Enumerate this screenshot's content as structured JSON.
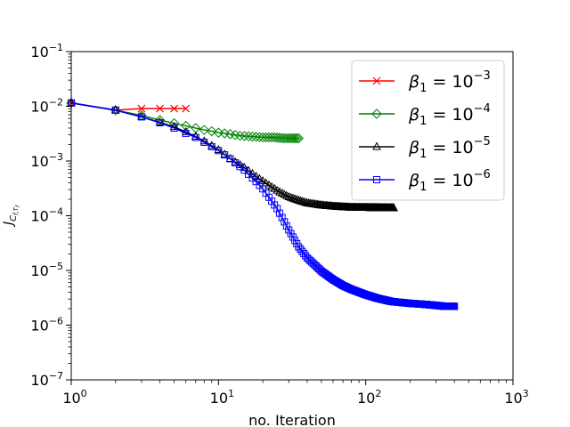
{
  "chart_data": {
    "type": "line",
    "xscale": "log",
    "yscale": "log",
    "xlim": [
      1,
      1000
    ],
    "ylim": [
      1e-07,
      0.1
    ],
    "xlabel": "no. Iteration",
    "ylabel": "J_{C_{f,T_f}}",
    "legend_location": "upper-right",
    "grid": false,
    "x_ticks": [
      {
        "value": 1,
        "base": "10",
        "exp": "0"
      },
      {
        "value": 10,
        "base": "10",
        "exp": "1"
      },
      {
        "value": 100,
        "base": "10",
        "exp": "2"
      },
      {
        "value": 1000,
        "base": "10",
        "exp": "3"
      }
    ],
    "y_ticks": [
      {
        "value": 1e-07,
        "base": "10",
        "exp": "−7"
      },
      {
        "value": 1e-06,
        "base": "10",
        "exp": "−6"
      },
      {
        "value": 1e-05,
        "base": "10",
        "exp": "−5"
      },
      {
        "value": 0.0001,
        "base": "10",
        "exp": "−4"
      },
      {
        "value": 0.001,
        "base": "10",
        "exp": "−3"
      },
      {
        "value": 0.01,
        "base": "10",
        "exp": "−2"
      },
      {
        "value": 0.1,
        "base": "10",
        "exp": "−1"
      }
    ],
    "series": [
      {
        "name": "β1 = 10^-3",
        "legend_prefix": "β",
        "legend_sub": "1",
        "legend_mid": " = 10",
        "legend_exp": "−3",
        "color": "#ff0000",
        "marker": "x",
        "x": [
          1,
          2,
          3,
          4,
          5,
          6
        ],
        "y": [
          0.0115,
          0.0085,
          0.0091,
          0.0091,
          0.0091,
          0.0091
        ]
      },
      {
        "name": "β1 = 10^-4",
        "legend_prefix": "β",
        "legend_sub": "1",
        "legend_mid": " = 10",
        "legend_exp": "−4",
        "color": "#008000",
        "marker": "diamond",
        "x": [
          1,
          2,
          3,
          4,
          5,
          6,
          7,
          8,
          9,
          10,
          12,
          14,
          17,
          20,
          24,
          28,
          32,
          35
        ],
        "y": [
          0.0115,
          0.0085,
          0.0068,
          0.0056,
          0.0049,
          0.0044,
          0.004,
          0.0037,
          0.0035,
          0.0033,
          0.0031,
          0.0029,
          0.0028,
          0.0027,
          0.0027,
          0.0026,
          0.0026,
          0.0026
        ]
      },
      {
        "name": "β1 = 10^-5",
        "legend_prefix": "β",
        "legend_sub": "1",
        "legend_mid": " = 10",
        "legend_exp": "−5",
        "color": "#000000",
        "marker": "triangle",
        "x": [
          1,
          2,
          3,
          4,
          5,
          6,
          7,
          8,
          10,
          12,
          15,
          18,
          22,
          26,
          30,
          35,
          40,
          50,
          60,
          70,
          80,
          100,
          120,
          140,
          155
        ],
        "y": [
          0.0115,
          0.0085,
          0.0064,
          0.0051,
          0.0042,
          0.0034,
          0.0028,
          0.0023,
          0.0016,
          0.0011,
          0.00075,
          0.00052,
          0.00036,
          0.00027,
          0.00022,
          0.00019,
          0.00017,
          0.000155,
          0.000148,
          0.000144,
          0.000141,
          0.00014,
          0.000139,
          0.000138,
          0.000138
        ]
      },
      {
        "name": "β1 = 10^-6",
        "legend_prefix": "β",
        "legend_sub": "1",
        "legend_mid": " = 10",
        "legend_exp": "−6",
        "color": "#0000ff",
        "marker": "square",
        "x": [
          1,
          2,
          3,
          4,
          5,
          6,
          7,
          8,
          10,
          12,
          15,
          18,
          20,
          25,
          30,
          35,
          40,
          50,
          60,
          70,
          80,
          100,
          120,
          150,
          200,
          250,
          300,
          350,
          400
        ],
        "y": [
          0.0115,
          0.0085,
          0.0064,
          0.005,
          0.004,
          0.0032,
          0.0027,
          0.0022,
          0.00155,
          0.0011,
          0.00068,
          0.00042,
          0.00031,
          0.000135,
          5.5e-05,
          2.7e-05,
          1.7e-05,
          9.7e-06,
          6.8e-06,
          5.3e-06,
          4.5e-06,
          3.6e-06,
          3.1e-06,
          2.7e-06,
          2.5e-06,
          2.4e-06,
          2.3e-06,
          2.2e-06,
          2.2e-06
        ]
      }
    ]
  }
}
